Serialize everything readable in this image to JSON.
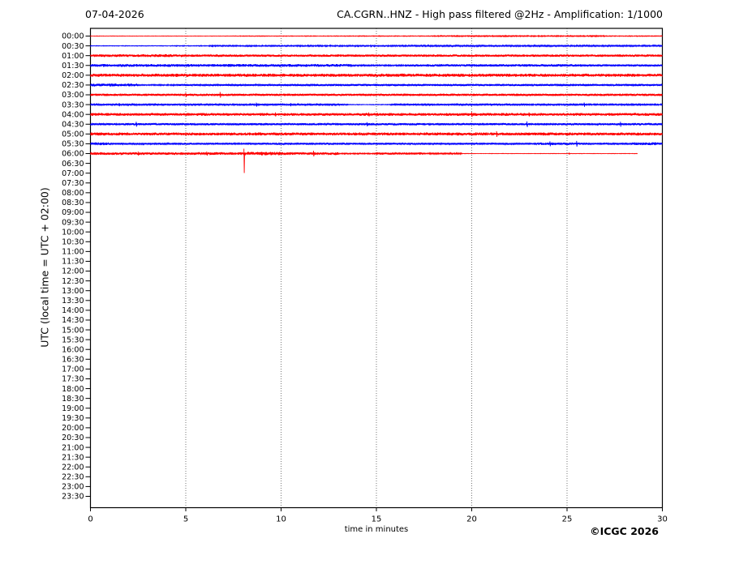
{
  "header": {
    "date": "07-04-2026",
    "title": "CA.CGRN..HNZ - High pass filtered @2Hz - Amplification: 1/1000"
  },
  "axes": {
    "y_label": "UTC (local time = UTC + 02:00)",
    "x_label": "time in minutes"
  },
  "footer": {
    "copyright": "©ICGC 2026"
  },
  "colors": {
    "red": "#ff0000",
    "blue": "#0000ff",
    "grid": "#555555",
    "frame": "#000000",
    "background": "#ffffff"
  },
  "chart_data": {
    "type": "line",
    "title": "CA.CGRN..HNZ - High pass filtered @2Hz - Amplification: 1/1000",
    "date": "07-04-2026",
    "station": "CA.CGRN..HNZ",
    "filter": "High pass filtered @2Hz",
    "amplification": "1/1000",
    "x_range": [
      0,
      30
    ],
    "x_ticks": [
      0,
      5,
      10,
      15,
      20,
      25,
      30
    ],
    "grid_minutes": [
      5,
      10,
      15,
      20,
      25
    ],
    "row_labels": [
      "00:00",
      "00:30",
      "01:00",
      "01:30",
      "02:00",
      "02:30",
      "03:00",
      "03:30",
      "04:00",
      "04:30",
      "05:00",
      "05:30",
      "06:00",
      "06:30",
      "07:00",
      "07:30",
      "08:00",
      "08:30",
      "09:00",
      "09:30",
      "10:00",
      "10:30",
      "11:00",
      "11:30",
      "12:00",
      "12:30",
      "13:00",
      "13:30",
      "14:00",
      "14:30",
      "15:00",
      "15:30",
      "16:00",
      "16:30",
      "17:00",
      "17:30",
      "18:00",
      "18:30",
      "19:00",
      "19:30",
      "20:00",
      "20:30",
      "21:00",
      "21:30",
      "22:00",
      "22:30",
      "23:00",
      "23:30"
    ],
    "traces": [
      {
        "time": "00:00",
        "color": "red",
        "start": 0,
        "end": 30,
        "segments": [
          [
            0,
            7.5,
            0.3
          ],
          [
            7.5,
            18,
            0.45
          ],
          [
            18,
            27,
            0.7
          ],
          [
            27,
            30,
            0.5
          ]
        ],
        "spikes": []
      },
      {
        "time": "00:30",
        "color": "blue",
        "start": 0,
        "end": 30,
        "segments": [
          [
            0,
            4.2,
            0.4
          ],
          [
            4.2,
            6.2,
            0.55
          ],
          [
            6.2,
            10.5,
            0.8
          ],
          [
            10.5,
            16,
            0.85
          ],
          [
            16,
            30,
            1.0
          ]
        ],
        "spikes": [
          [
            6.4,
            1.6,
            1.6
          ],
          [
            14.7,
            1.7,
            1.7
          ]
        ]
      },
      {
        "time": "01:00",
        "color": "red",
        "start": 0,
        "end": 30,
        "segments": [
          [
            0,
            5,
            1.8
          ],
          [
            5,
            30,
            1.5
          ]
        ],
        "spikes": []
      },
      {
        "time": "01:30",
        "color": "blue",
        "start": 0,
        "end": 30,
        "segments": [
          [
            0,
            13.7,
            1.8
          ],
          [
            13.7,
            16.5,
            0.9
          ],
          [
            16.5,
            26,
            1.6
          ],
          [
            26,
            30,
            1.3
          ]
        ],
        "spikes": []
      },
      {
        "time": "02:00",
        "color": "red",
        "start": 0,
        "end": 30,
        "segments": [
          [
            0,
            30,
            2.0
          ]
        ],
        "spikes": []
      },
      {
        "time": "02:30",
        "color": "blue",
        "start": 0,
        "end": 30,
        "segments": [
          [
            0,
            2.5,
            1.9
          ],
          [
            2.5,
            4.5,
            0.8
          ],
          [
            4.5,
            10,
            1.2
          ],
          [
            10,
            30,
            1.4
          ]
        ],
        "spikes": []
      },
      {
        "time": "03:00",
        "color": "red",
        "start": 0,
        "end": 30,
        "segments": [
          [
            0,
            30,
            1.5
          ]
        ],
        "spikes": [
          [
            5.0,
            2.5,
            2.5
          ],
          [
            6.8,
            3.5,
            3.5
          ]
        ]
      },
      {
        "time": "03:30",
        "color": "blue",
        "start": 0,
        "end": 30,
        "segments": [
          [
            0,
            13.5,
            1.0
          ],
          [
            13.5,
            15.7,
            0.45
          ],
          [
            15.7,
            30,
            1.0
          ]
        ],
        "spikes": [
          [
            1.5,
            2,
            2
          ],
          [
            8.7,
            2.5,
            2.5
          ],
          [
            10.5,
            2,
            2
          ],
          [
            25.9,
            2.6,
            2.6
          ]
        ]
      },
      {
        "time": "04:00",
        "color": "red",
        "start": 0,
        "end": 30,
        "segments": [
          [
            0,
            30,
            1.8
          ]
        ],
        "spikes": [
          [
            9.7,
            2.5,
            2.5
          ],
          [
            14.6,
            2.5,
            2.5
          ],
          [
            20,
            3,
            3
          ],
          [
            23,
            2.5,
            2.5
          ]
        ]
      },
      {
        "time": "04:30",
        "color": "blue",
        "start": 0,
        "end": 30,
        "segments": [
          [
            0,
            30,
            1.4
          ]
        ],
        "spikes": [
          [
            2.4,
            3,
            3
          ],
          [
            14.5,
            2.5,
            2.5
          ],
          [
            22.9,
            3.5,
            3.5
          ],
          [
            27.8,
            3,
            3
          ]
        ]
      },
      {
        "time": "05:00",
        "color": "red",
        "start": 0,
        "end": 30,
        "segments": [
          [
            0,
            30,
            1.9
          ]
        ],
        "spikes": [
          [
            5.0,
            2.2,
            2.2
          ],
          [
            21.3,
            3.5,
            3.5
          ]
        ]
      },
      {
        "time": "05:30",
        "color": "blue",
        "start": 0,
        "end": 30,
        "segments": [
          [
            0,
            1,
            1.8
          ],
          [
            1,
            23.5,
            1.25
          ],
          [
            23.5,
            26,
            1.6
          ],
          [
            26,
            28.5,
            1.25
          ],
          [
            28.5,
            30,
            1.8
          ]
        ],
        "spikes": [
          [
            24.1,
            3,
            3
          ],
          [
            25.5,
            3.5,
            3.5
          ]
        ]
      },
      {
        "time": "06:00",
        "color": "red",
        "start": 0,
        "end": 28.7,
        "segments": [
          [
            0,
            8,
            1.8
          ],
          [
            8,
            10,
            2.3
          ],
          [
            10,
            13,
            1.8
          ],
          [
            13,
            15,
            0.8
          ],
          [
            15,
            17.5,
            1.5
          ],
          [
            17.5,
            19.5,
            1.0
          ],
          [
            19.5,
            28.7,
            0.3
          ]
        ],
        "spikes": [
          [
            2.5,
            2.5,
            2.5
          ],
          [
            6.1,
            2.5,
            2.5
          ],
          [
            8.05,
            6,
            24
          ],
          [
            11.7,
            3.5,
            3.5
          ],
          [
            25.1,
            1.3,
            1.3
          ]
        ]
      }
    ]
  }
}
